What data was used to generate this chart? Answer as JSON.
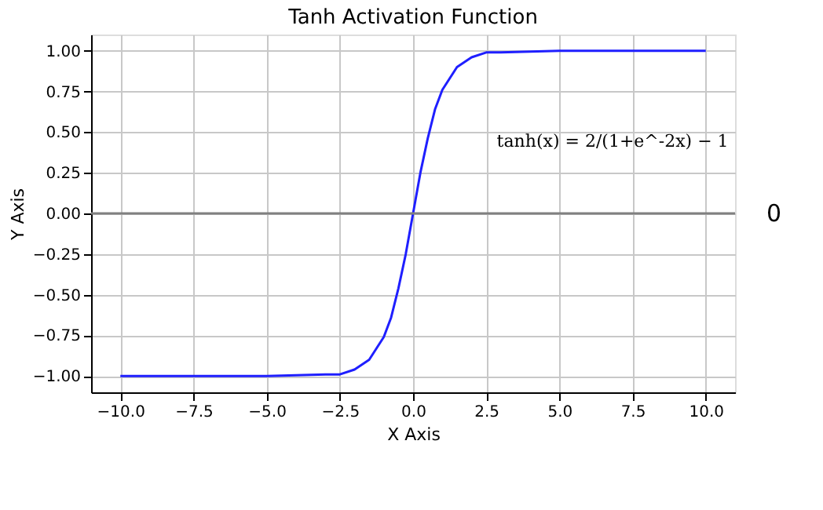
{
  "chart_data": {
    "type": "line",
    "title": "Tanh Activation Function",
    "xlabel": "X Axis",
    "ylabel": "Y Axis",
    "x": [
      -10,
      -5,
      -3,
      -2.5,
      -2,
      -1.5,
      -1,
      -0.75,
      -0.5,
      -0.25,
      0,
      0.25,
      0.5,
      0.75,
      1,
      1.5,
      2,
      2.5,
      3,
      5,
      10
    ],
    "series": [
      {
        "color": "#1f1fff",
        "values": [
          -1.0,
          -1.0,
          -0.99,
          -0.99,
          -0.96,
          -0.9,
          -0.76,
          -0.64,
          -0.46,
          -0.25,
          0.0,
          0.25,
          0.46,
          0.64,
          0.76,
          0.9,
          0.96,
          0.99,
          0.99,
          1.0,
          1.0
        ]
      }
    ],
    "xlim": [
      -11,
      11
    ],
    "ylim": [
      -1.1,
      1.1
    ],
    "xticks": [
      {
        "value": -10,
        "label": "−10.0"
      },
      {
        "value": -7.5,
        "label": "−7.5"
      },
      {
        "value": -5,
        "label": "−5.0"
      },
      {
        "value": -2.5,
        "label": "−2.5"
      },
      {
        "value": 0,
        "label": "0.0"
      },
      {
        "value": 2.5,
        "label": "2.5"
      },
      {
        "value": 5,
        "label": "5.0"
      },
      {
        "value": 7.5,
        "label": "7.5"
      },
      {
        "value": 10,
        "label": "10.0"
      }
    ],
    "yticks": [
      {
        "value": -1,
        "label": "−1.00"
      },
      {
        "value": -0.75,
        "label": "−0.75"
      },
      {
        "value": -0.5,
        "label": "−0.50"
      },
      {
        "value": -0.25,
        "label": "−0.25"
      },
      {
        "value": 0,
        "label": "0.00"
      },
      {
        "value": 0.25,
        "label": "0.25"
      },
      {
        "value": 0.5,
        "label": "0.50"
      },
      {
        "value": 0.75,
        "label": "0.75"
      },
      {
        "value": 1,
        "label": "1.00"
      }
    ],
    "ref_lines": [
      {
        "axis": "y",
        "value": 0,
        "label": "0",
        "color": "#808080"
      }
    ],
    "annotations": [
      "tanh(x) = 2/(1+e^-2x) − 1"
    ],
    "grid": true,
    "marker": "none",
    "line_style": "solid"
  }
}
